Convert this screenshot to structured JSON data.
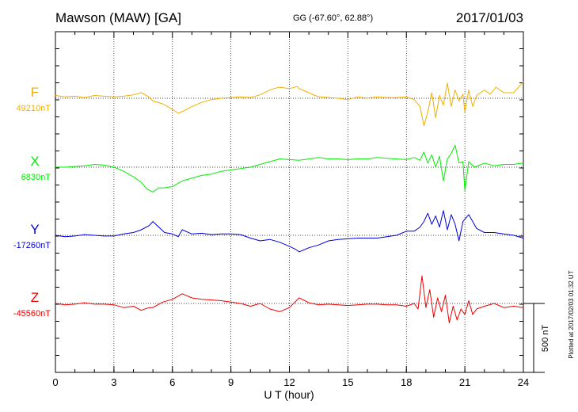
{
  "header": {
    "station": "Mawson (MAW)  [GA]",
    "coords": "GG (-67.60°,  62.88°)",
    "date": "2017/01/03"
  },
  "side_note": "Plotted at 2017/02/03 01:32 UT",
  "scale_label": "500 nT",
  "colors": {
    "F": "#f0b000",
    "X": "#00ee00",
    "Y": "#0000dd",
    "Z": "#ee0000",
    "axis": "#000000",
    "grid": "#000000"
  },
  "chart_data": {
    "type": "line",
    "xlabel": "U T (hour)",
    "x_ticks": [
      0,
      3,
      6,
      9,
      12,
      15,
      18,
      21,
      24
    ],
    "xlim": [
      0,
      24
    ],
    "scale_nT": 500,
    "grid": true,
    "series": [
      {
        "name": "F",
        "baseline_label": "49210nT",
        "baseline_nT": 49210,
        "points": [
          [
            0,
            20
          ],
          [
            0.5,
            10
          ],
          [
            1,
            15
          ],
          [
            1.5,
            5
          ],
          [
            2,
            20
          ],
          [
            2.5,
            15
          ],
          [
            3,
            10
          ],
          [
            3.5,
            15
          ],
          [
            4,
            25
          ],
          [
            4.4,
            40
          ],
          [
            4.8,
            10
          ],
          [
            5,
            -20
          ],
          [
            5.5,
            -40
          ],
          [
            6,
            -80
          ],
          [
            6.3,
            -110
          ],
          [
            6.6,
            -90
          ],
          [
            7,
            -60
          ],
          [
            7.5,
            -30
          ],
          [
            8,
            -10
          ],
          [
            8.5,
            0
          ],
          [
            9,
            5
          ],
          [
            9.5,
            10
          ],
          [
            10,
            5
          ],
          [
            10.5,
            25
          ],
          [
            11,
            60
          ],
          [
            11.2,
            70
          ],
          [
            11.5,
            80
          ],
          [
            12,
            70
          ],
          [
            12.4,
            85
          ],
          [
            12.5,
            70
          ],
          [
            13,
            40
          ],
          [
            13.3,
            20
          ],
          [
            13.6,
            10
          ],
          [
            14,
            5
          ],
          [
            14.5,
            0
          ],
          [
            15,
            -10
          ],
          [
            15.5,
            10
          ],
          [
            16,
            0
          ],
          [
            16.5,
            10
          ],
          [
            17,
            5
          ],
          [
            17.5,
            5
          ],
          [
            18,
            10
          ],
          [
            18.4,
            -10
          ],
          [
            18.7,
            -60
          ],
          [
            18.9,
            -200
          ],
          [
            19.1,
            -100
          ],
          [
            19.3,
            40
          ],
          [
            19.5,
            -140
          ],
          [
            19.7,
            20
          ],
          [
            19.9,
            -50
          ],
          [
            20.1,
            110
          ],
          [
            20.3,
            -60
          ],
          [
            20.5,
            60
          ],
          [
            20.7,
            -20
          ],
          [
            20.9,
            30
          ],
          [
            21,
            -100
          ],
          [
            21.2,
            60
          ],
          [
            21.4,
            -60
          ],
          [
            21.6,
            20
          ],
          [
            22,
            60
          ],
          [
            22.3,
            30
          ],
          [
            22.6,
            80
          ],
          [
            23,
            40
          ],
          [
            23.5,
            40
          ],
          [
            24,
            120
          ]
        ]
      },
      {
        "name": "X",
        "baseline_label": "6830nT",
        "baseline_nT": 6830,
        "points": [
          [
            0,
            0
          ],
          [
            0.5,
            0
          ],
          [
            1,
            5
          ],
          [
            1.5,
            10
          ],
          [
            2,
            20
          ],
          [
            2.5,
            15
          ],
          [
            3,
            0
          ],
          [
            3.5,
            -30
          ],
          [
            4,
            -70
          ],
          [
            4.4,
            -110
          ],
          [
            4.7,
            -160
          ],
          [
            5,
            -180
          ],
          [
            5.3,
            -150
          ],
          [
            5.6,
            -150
          ],
          [
            6,
            -140
          ],
          [
            6.5,
            -100
          ],
          [
            7,
            -80
          ],
          [
            7.5,
            -60
          ],
          [
            8,
            -50
          ],
          [
            8.5,
            -30
          ],
          [
            9,
            -20
          ],
          [
            9.5,
            -10
          ],
          [
            10,
            0
          ],
          [
            10.5,
            20
          ],
          [
            11,
            40
          ],
          [
            11.5,
            60
          ],
          [
            12,
            55
          ],
          [
            12.5,
            50
          ],
          [
            13,
            60
          ],
          [
            13.5,
            70
          ],
          [
            14,
            60
          ],
          [
            14.5,
            60
          ],
          [
            15,
            55
          ],
          [
            15.5,
            60
          ],
          [
            16,
            60
          ],
          [
            16.5,
            70
          ],
          [
            17,
            65
          ],
          [
            17.5,
            60
          ],
          [
            18,
            55
          ],
          [
            18.4,
            70
          ],
          [
            18.7,
            50
          ],
          [
            18.9,
            110
          ],
          [
            19.1,
            30
          ],
          [
            19.3,
            90
          ],
          [
            19.5,
            0
          ],
          [
            19.7,
            80
          ],
          [
            19.9,
            -100
          ],
          [
            20.1,
            60
          ],
          [
            20.3,
            100
          ],
          [
            20.5,
            160
          ],
          [
            20.7,
            30
          ],
          [
            20.9,
            40
          ],
          [
            21,
            -170
          ],
          [
            21.2,
            40
          ],
          [
            21.5,
            0
          ],
          [
            22,
            30
          ],
          [
            22.5,
            10
          ],
          [
            23,
            20
          ],
          [
            23.5,
            20
          ],
          [
            24,
            30
          ]
        ]
      },
      {
        "name": "Y",
        "baseline_label": "-17260nT",
        "baseline_nT": -17260,
        "points": [
          [
            0,
            0
          ],
          [
            0.5,
            -10
          ],
          [
            1,
            -5
          ],
          [
            1.5,
            5
          ],
          [
            2,
            0
          ],
          [
            2.5,
            -5
          ],
          [
            3,
            -5
          ],
          [
            3.5,
            10
          ],
          [
            4,
            20
          ],
          [
            4.4,
            40
          ],
          [
            4.8,
            70
          ],
          [
            5,
            100
          ],
          [
            5.3,
            60
          ],
          [
            5.6,
            20
          ],
          [
            6,
            10
          ],
          [
            6.3,
            -10
          ],
          [
            6.5,
            40
          ],
          [
            7,
            10
          ],
          [
            7.5,
            15
          ],
          [
            8,
            5
          ],
          [
            8.5,
            10
          ],
          [
            9,
            10
          ],
          [
            9.5,
            5
          ],
          [
            10,
            -20
          ],
          [
            10.5,
            -40
          ],
          [
            11,
            -30
          ],
          [
            11.5,
            -50
          ],
          [
            12,
            -80
          ],
          [
            12.3,
            -100
          ],
          [
            12.5,
            -120
          ],
          [
            13,
            -90
          ],
          [
            13.5,
            -70
          ],
          [
            14,
            -40
          ],
          [
            14.5,
            -30
          ],
          [
            15,
            -25
          ],
          [
            15.5,
            -20
          ],
          [
            16,
            -20
          ],
          [
            16.5,
            -20
          ],
          [
            17,
            -10
          ],
          [
            17.5,
            0
          ],
          [
            18,
            30
          ],
          [
            18.4,
            30
          ],
          [
            18.7,
            60
          ],
          [
            18.9,
            100
          ],
          [
            19.1,
            160
          ],
          [
            19.3,
            80
          ],
          [
            19.5,
            140
          ],
          [
            19.7,
            60
          ],
          [
            19.9,
            180
          ],
          [
            20.1,
            40
          ],
          [
            20.3,
            150
          ],
          [
            20.5,
            80
          ],
          [
            20.7,
            -40
          ],
          [
            20.9,
            100
          ],
          [
            21.2,
            150
          ],
          [
            21.4,
            100
          ],
          [
            21.6,
            50
          ],
          [
            22,
            20
          ],
          [
            22.5,
            20
          ],
          [
            23,
            10
          ],
          [
            23.5,
            0
          ],
          [
            24,
            -20
          ]
        ]
      },
      {
        "name": "Z",
        "baseline_label": "-45560nT",
        "baseline_nT": -45560,
        "points": [
          [
            0,
            0
          ],
          [
            0.5,
            -10
          ],
          [
            1,
            -5
          ],
          [
            1.5,
            5
          ],
          [
            2,
            -5
          ],
          [
            2.5,
            -5
          ],
          [
            3,
            -10
          ],
          [
            3.5,
            -30
          ],
          [
            4,
            -20
          ],
          [
            4.4,
            -50
          ],
          [
            4.8,
            -30
          ],
          [
            5,
            -30
          ],
          [
            5.5,
            10
          ],
          [
            6,
            30
          ],
          [
            6.5,
            70
          ],
          [
            7,
            40
          ],
          [
            7.5,
            30
          ],
          [
            8,
            25
          ],
          [
            8.5,
            20
          ],
          [
            9,
            10
          ],
          [
            9.5,
            0
          ],
          [
            10,
            -20
          ],
          [
            10.5,
            0
          ],
          [
            11,
            -40
          ],
          [
            11.5,
            -60
          ],
          [
            12,
            -30
          ],
          [
            12.5,
            40
          ],
          [
            13,
            5
          ],
          [
            13.5,
            -10
          ],
          [
            14,
            -5
          ],
          [
            14.5,
            -10
          ],
          [
            15,
            -15
          ],
          [
            15.5,
            -10
          ],
          [
            16,
            -5
          ],
          [
            16.5,
            -5
          ],
          [
            17,
            -10
          ],
          [
            17.5,
            -10
          ],
          [
            18,
            -20
          ],
          [
            18.4,
            0
          ],
          [
            18.6,
            -40
          ],
          [
            18.8,
            200
          ],
          [
            19,
            -30
          ],
          [
            19.2,
            100
          ],
          [
            19.4,
            -100
          ],
          [
            19.6,
            40
          ],
          [
            19.8,
            -60
          ],
          [
            20,
            60
          ],
          [
            20.2,
            -140
          ],
          [
            20.4,
            -20
          ],
          [
            20.6,
            -120
          ],
          [
            20.8,
            -40
          ],
          [
            21,
            -80
          ],
          [
            21.2,
            20
          ],
          [
            21.4,
            -80
          ],
          [
            21.6,
            -40
          ],
          [
            22,
            -20
          ],
          [
            22.5,
            0
          ],
          [
            23,
            -30
          ],
          [
            23.5,
            -20
          ],
          [
            24,
            -30
          ]
        ]
      }
    ]
  }
}
